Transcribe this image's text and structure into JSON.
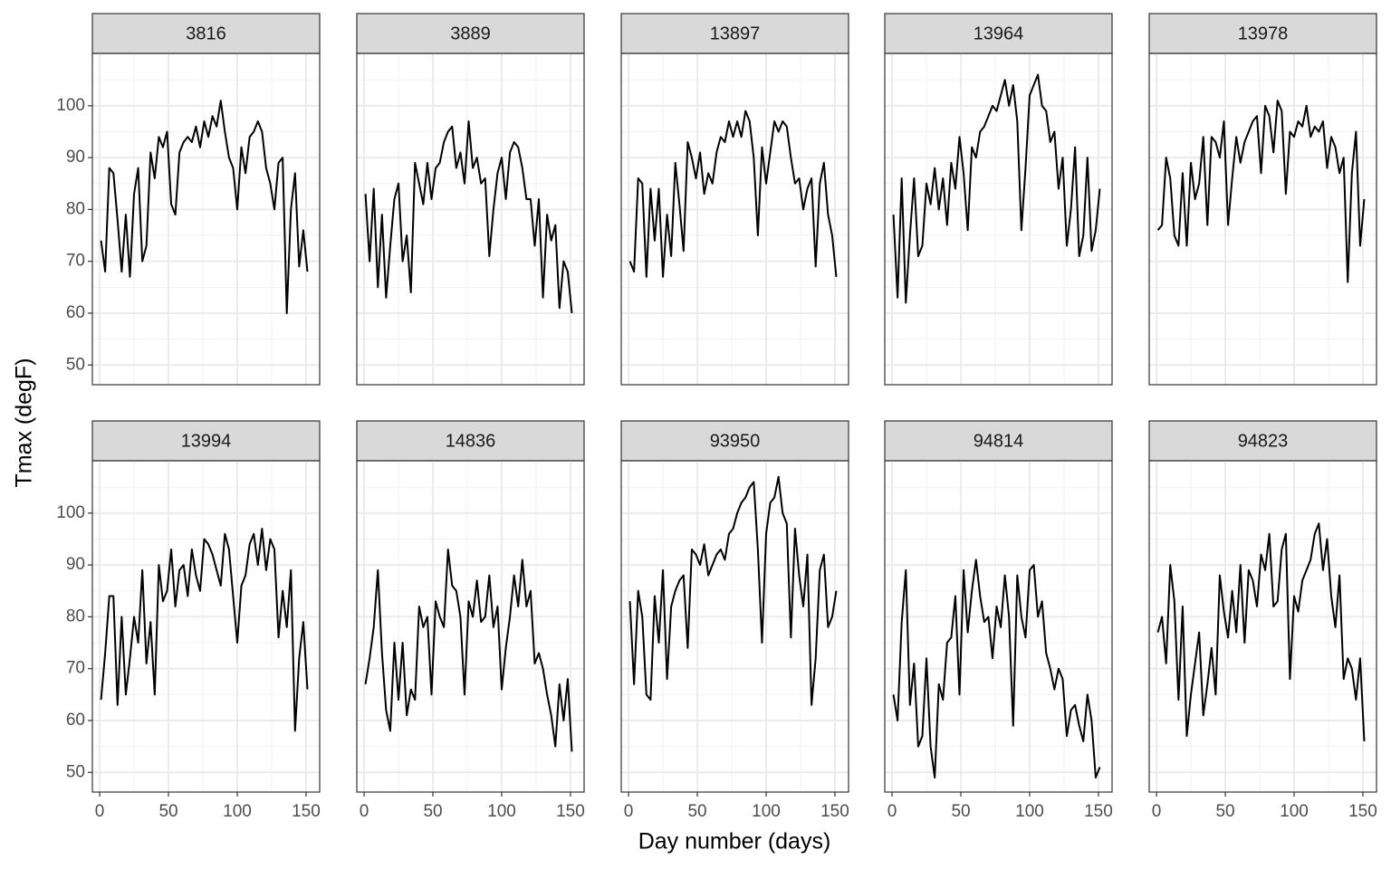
{
  "chart_data": {
    "type": "line",
    "x_label": "Day number (days)",
    "y_label": "Tmax (degF)",
    "xlim": [
      -5.3,
      159.9
    ],
    "ylim": [
      46.2,
      110.1
    ],
    "xticks": [
      0,
      50,
      100,
      150
    ],
    "yticks": [
      50,
      60,
      70,
      80,
      90,
      100
    ],
    "grid": true,
    "color": "#000000",
    "x": [
      1,
      4,
      7,
      10,
      13,
      16,
      19,
      22,
      25,
      28,
      31,
      34,
      37,
      40,
      43,
      46,
      49,
      52,
      55,
      58,
      61,
      64,
      67,
      70,
      73,
      76,
      79,
      82,
      85,
      88,
      91,
      94,
      97,
      100,
      103,
      106,
      109,
      112,
      115,
      118,
      121,
      124,
      127,
      130,
      133,
      136,
      139,
      142,
      145,
      148,
      151
    ],
    "panels": [
      {
        "title": "3816",
        "values": [
          74,
          68,
          88,
          87,
          78,
          68,
          79,
          67,
          83,
          88,
          70,
          73,
          91,
          86,
          94,
          92,
          95,
          81,
          79,
          91,
          93,
          94,
          93,
          96,
          92,
          97,
          94,
          98,
          96,
          101,
          95,
          90,
          88,
          80,
          92,
          87,
          94,
          95,
          97,
          95,
          88,
          85,
          80,
          89,
          90,
          60,
          80,
          87,
          69,
          76,
          68
        ]
      },
      {
        "title": "3889",
        "values": [
          83,
          70,
          84,
          65,
          79,
          63,
          73,
          82,
          85,
          70,
          75,
          64,
          89,
          85,
          81,
          89,
          82,
          88,
          89,
          93,
          95,
          96,
          88,
          91,
          85,
          97,
          88,
          90,
          85,
          86,
          71,
          80,
          87,
          90,
          82,
          91,
          93,
          92,
          88,
          82,
          82,
          73,
          82,
          63,
          79,
          74,
          77,
          61,
          70,
          68,
          60
        ]
      },
      {
        "title": "13897",
        "values": [
          70,
          68,
          86,
          85,
          67,
          84,
          74,
          84,
          67,
          79,
          71,
          89,
          81,
          72,
          93,
          90,
          86,
          91,
          83,
          87,
          85,
          91,
          94,
          93,
          97,
          94,
          97,
          94,
          99,
          97,
          90,
          75,
          92,
          85,
          91,
          97,
          95,
          97,
          96,
          90,
          85,
          86,
          80,
          84,
          86,
          69,
          85,
          89,
          79,
          75,
          67
        ]
      },
      {
        "title": "13964",
        "values": [
          79,
          63,
          86,
          62,
          75,
          86,
          71,
          73,
          85,
          81,
          88,
          80,
          86,
          77,
          89,
          84,
          94,
          87,
          76,
          92,
          90,
          95,
          96,
          98,
          100,
          99,
          102,
          105,
          100,
          104,
          97,
          76,
          88,
          102,
          104,
          106,
          100,
          99,
          93,
          95,
          84,
          90,
          73,
          80,
          92,
          71,
          75,
          90,
          72,
          76,
          84
        ]
      },
      {
        "title": "13978",
        "values": [
          76,
          77,
          90,
          86,
          75,
          73,
          87,
          73,
          89,
          82,
          85,
          94,
          77,
          94,
          93,
          90,
          97,
          77,
          86,
          94,
          89,
          93,
          95,
          97,
          98,
          87,
          100,
          98,
          91,
          101,
          99,
          83,
          95,
          94,
          97,
          96,
          100,
          94,
          96,
          95,
          97,
          88,
          94,
          92,
          87,
          90,
          66,
          87,
          95,
          73,
          82
        ]
      },
      {
        "title": "13994",
        "values": [
          64,
          73,
          84,
          84,
          63,
          80,
          65,
          72,
          80,
          75,
          89,
          71,
          79,
          65,
          90,
          83,
          85,
          93,
          82,
          89,
          90,
          84,
          93,
          88,
          85,
          95,
          94,
          92,
          89,
          86,
          96,
          93,
          84,
          75,
          86,
          88,
          94,
          96,
          90,
          97,
          89,
          95,
          93,
          76,
          85,
          78,
          89,
          58,
          72,
          79,
          66
        ]
      },
      {
        "title": "14836",
        "values": [
          67,
          72,
          78,
          89,
          73,
          62,
          58,
          75,
          64,
          75,
          61,
          66,
          64,
          82,
          78,
          80,
          65,
          83,
          80,
          78,
          93,
          86,
          85,
          80,
          65,
          83,
          80,
          87,
          79,
          80,
          88,
          78,
          82,
          66,
          74,
          80,
          88,
          82,
          91,
          82,
          85,
          71,
          73,
          70,
          65,
          61,
          55,
          67,
          60,
          68,
          54
        ]
      },
      {
        "title": "93950",
        "values": [
          83,
          67,
          85,
          80,
          65,
          64,
          84,
          75,
          89,
          68,
          82,
          85,
          87,
          88,
          74,
          93,
          92,
          90,
          94,
          88,
          90,
          92,
          93,
          91,
          96,
          97,
          100,
          102,
          103,
          105,
          106,
          93,
          75,
          96,
          102,
          103,
          107,
          100,
          98,
          76,
          97,
          88,
          82,
          92,
          63,
          72,
          89,
          92,
          78,
          80,
          85
        ]
      },
      {
        "title": "94814",
        "values": [
          65,
          60,
          79,
          89,
          63,
          71,
          55,
          57,
          72,
          55,
          49,
          67,
          64,
          75,
          76,
          84,
          65,
          89,
          77,
          85,
          91,
          84,
          79,
          80,
          72,
          82,
          78,
          88,
          80,
          59,
          88,
          80,
          76,
          89,
          90,
          80,
          83,
          73,
          70,
          66,
          70,
          68,
          57,
          62,
          63,
          59,
          56,
          65,
          60,
          49,
          51
        ]
      },
      {
        "title": "94823",
        "values": [
          77,
          80,
          71,
          90,
          83,
          64,
          82,
          57,
          65,
          71,
          77,
          61,
          67,
          74,
          65,
          88,
          81,
          76,
          85,
          77,
          90,
          75,
          89,
          87,
          82,
          92,
          89,
          96,
          82,
          83,
          93,
          96,
          68,
          84,
          81,
          87,
          89,
          91,
          96,
          98,
          89,
          95,
          84,
          78,
          88,
          68,
          72,
          70,
          64,
          72,
          56
        ]
      }
    ]
  }
}
